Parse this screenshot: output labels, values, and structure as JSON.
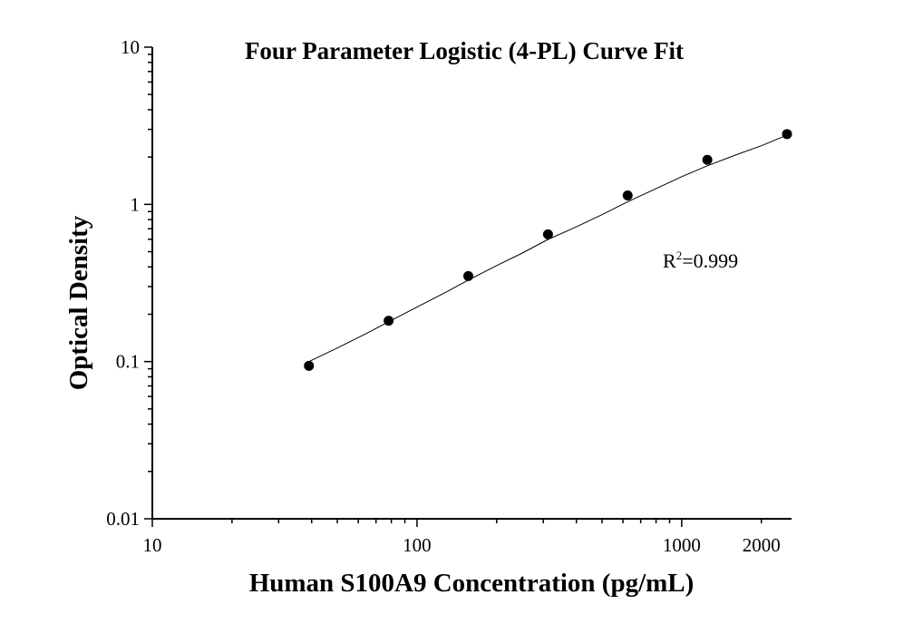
{
  "chart_data": {
    "type": "scatter",
    "title": "Four Parameter Logistic (4-PL) Curve Fit",
    "xlabel": "Human S100A9 Concentration (pg/mL)",
    "ylabel": "Optical Density",
    "x_scale": "log",
    "y_scale": "log",
    "xlim": [
      10,
      2600
    ],
    "ylim": [
      0.01,
      10
    ],
    "x_ticks": [
      10,
      100,
      1000,
      2000
    ],
    "x_tick_labels": [
      "10",
      "100",
      "1000",
      "2000"
    ],
    "y_ticks": [
      0.01,
      0.1,
      1,
      10
    ],
    "y_tick_labels": [
      "0.01",
      "0.1",
      "1",
      "10"
    ],
    "grid": false,
    "series": [
      {
        "x": [
          39.06,
          78.13,
          156.25,
          312.5,
          625,
          1250,
          2500
        ],
        "y": [
          0.094,
          0.182,
          0.35,
          0.645,
          1.14,
          1.92,
          2.8
        ]
      }
    ],
    "fit_curve": {
      "x": [
        39.06,
        50,
        65,
        78.13,
        100,
        130,
        156.25,
        200,
        250,
        312.5,
        400,
        500,
        625,
        800,
        1000,
        1250,
        1600,
        2000,
        2500
      ],
      "y": [
        0.1,
        0.122,
        0.152,
        0.179,
        0.222,
        0.279,
        0.33,
        0.408,
        0.49,
        0.598,
        0.72,
        0.86,
        1.04,
        1.26,
        1.5,
        1.76,
        2.06,
        2.36,
        2.76
      ]
    },
    "annotation": {
      "base": "R",
      "sup": "2",
      "rest": "=0.999"
    },
    "colors": {
      "points": "#000000",
      "curve": "#000000",
      "axes": "#000000"
    }
  }
}
